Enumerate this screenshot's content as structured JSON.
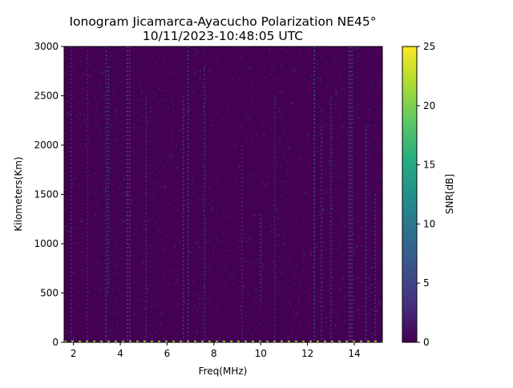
{
  "chart_data": {
    "type": "heatmap",
    "title": "Ionogram Jicamarca-Ayacucho Polarization NE45°",
    "subtitle": "10/11/2023-10:48:05 UTC",
    "xlabel": "Freq(MHz)",
    "ylabel": "Kilometers(Km)",
    "xlim": [
      1.6,
      15.2
    ],
    "ylim": [
      0,
      3000
    ],
    "x_ticks": [
      2,
      4,
      6,
      8,
      10,
      12,
      14
    ],
    "y_ticks": [
      0,
      500,
      1000,
      1500,
      2000,
      2500,
      3000
    ],
    "colorbar": {
      "label": "SNR[dB]",
      "range": [
        0,
        25
      ],
      "ticks": [
        0,
        5,
        10,
        15,
        20,
        25
      ],
      "colormap": "viridis"
    },
    "background_snr_db": 0.5,
    "echo_streaks": [
      {
        "freq_mhz": 1.9,
        "from_km": 0,
        "to_km": 3000,
        "snr_db": 5
      },
      {
        "freq_mhz": 2.6,
        "from_km": 0,
        "to_km": 3000,
        "snr_db": 4
      },
      {
        "freq_mhz": 3.4,
        "from_km": 0,
        "to_km": 3000,
        "snr_db": 8
      },
      {
        "freq_mhz": 3.5,
        "from_km": 500,
        "to_km": 2800,
        "snr_db": 7
      },
      {
        "freq_mhz": 4.3,
        "from_km": 0,
        "to_km": 3000,
        "snr_db": 9
      },
      {
        "freq_mhz": 4.4,
        "from_km": 0,
        "to_km": 3000,
        "snr_db": 7
      },
      {
        "freq_mhz": 5.1,
        "from_km": 0,
        "to_km": 2500,
        "snr_db": 5
      },
      {
        "freq_mhz": 6.7,
        "from_km": 0,
        "to_km": 2500,
        "snr_db": 8
      },
      {
        "freq_mhz": 6.9,
        "from_km": 0,
        "to_km": 3000,
        "snr_db": 7
      },
      {
        "freq_mhz": 7.6,
        "from_km": 0,
        "to_km": 2800,
        "snr_db": 6
      },
      {
        "freq_mhz": 9.2,
        "from_km": 0,
        "to_km": 2000,
        "snr_db": 4
      },
      {
        "freq_mhz": 10.0,
        "from_km": 400,
        "to_km": 1300,
        "snr_db": 7
      },
      {
        "freq_mhz": 10.6,
        "from_km": 0,
        "to_km": 2500,
        "snr_db": 4
      },
      {
        "freq_mhz": 12.3,
        "from_km": 0,
        "to_km": 3000,
        "snr_db": 10
      },
      {
        "freq_mhz": 12.6,
        "from_km": 0,
        "to_km": 2200,
        "snr_db": 7
      },
      {
        "freq_mhz": 13.0,
        "from_km": 0,
        "to_km": 2500,
        "snr_db": 8
      },
      {
        "freq_mhz": 13.8,
        "from_km": 0,
        "to_km": 3000,
        "snr_db": 11
      },
      {
        "freq_mhz": 13.9,
        "from_km": 0,
        "to_km": 3000,
        "snr_db": 9
      },
      {
        "freq_mhz": 14.5,
        "from_km": 0,
        "to_km": 2200,
        "snr_db": 8
      },
      {
        "freq_mhz": 14.9,
        "from_km": 0,
        "to_km": 1500,
        "snr_db": 6
      }
    ],
    "ground_echo": {
      "height_km": 0,
      "from_mhz": 1.6,
      "to_mhz": 15.2,
      "snr_db": 23
    },
    "grid": false,
    "legend": "colorbar-right"
  }
}
